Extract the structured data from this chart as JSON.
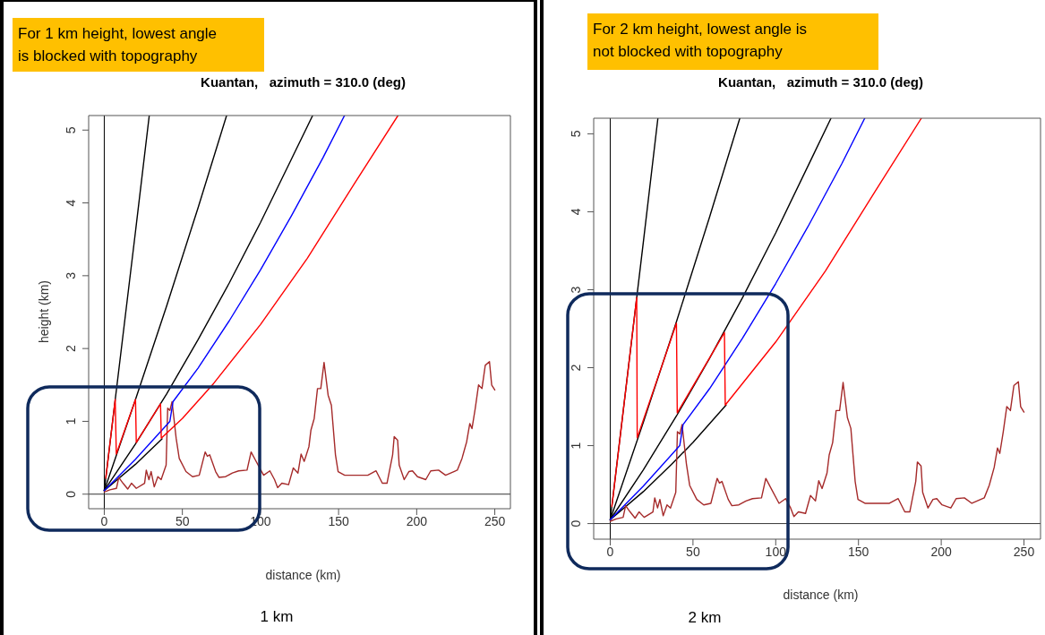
{
  "chart_data": [
    {
      "type": "line",
      "title": "Kuantan,   azimuth = 310.0 (deg)",
      "xlabel": "distance (km)",
      "ylabel": "height (km)",
      "annotations": [
        "For 1 km height, lowest angle\nis blocked with topography",
        "1 km"
      ],
      "xlim": [
        -10,
        260
      ],
      "ylim": [
        -0.2,
        5.2
      ],
      "xticks": [
        0,
        50,
        100,
        150,
        200,
        250
      ],
      "yticks": [
        0,
        1,
        2,
        3,
        4,
        5
      ],
      "ref_lines": [
        {
          "axis": "x",
          "value": 0,
          "color": "#000000"
        },
        {
          "axis": "y",
          "value": 0,
          "color": "#333333"
        }
      ],
      "series": [
        {
          "color": "#000000",
          "x": [
            0,
            10,
            20,
            28.8
          ],
          "values": [
            0.05,
            1.83,
            3.61,
            5.2
          ]
        },
        {
          "color": "#000000",
          "x": [
            0,
            20,
            40,
            60,
            78.3
          ],
          "values": [
            0.05,
            1.3,
            2.59,
            3.93,
            5.2
          ]
        },
        {
          "color": "#000000",
          "x": [
            0,
            20,
            40,
            60,
            80,
            100,
            120,
            133.4
          ],
          "values": [
            0.05,
            0.69,
            1.38,
            2.12,
            2.9,
            3.73,
            4.61,
            5.2
          ]
        },
        {
          "color": "#000000",
          "x": [
            0,
            20,
            37
          ],
          "values": [
            0.05,
            0.41,
            0.76
          ]
        },
        {
          "color": "#a52a2a",
          "x": [
            0,
            3.6,
            7.8,
            9.3,
            12,
            15,
            17.4,
            20.5,
            25.8,
            26.9,
            28.6,
            30,
            32,
            34.3,
            36.4,
            39.6,
            40.6,
            42,
            43.4,
            46,
            48,
            52.3,
            56.5,
            60.8,
            64.6,
            66,
            67.5,
            71.3,
            73.5,
            77.7,
            82,
            86,
            91.4,
            94,
            96.7,
            102,
            106,
            109,
            111,
            113.7,
            118,
            121,
            124,
            126,
            128,
            131,
            132.3,
            134.4,
            136.5,
            138.6,
            140.7,
            143.3,
            145.4,
            148,
            149.7,
            153.9,
            162,
            168.7,
            174,
            178,
            181,
            184.6,
            185.6,
            187.8,
            188.8,
            192,
            195,
            197.3,
            200.5,
            205.8,
            209,
            214,
            218.5,
            226,
            229,
            232,
            234,
            235.4,
            237.5,
            239.6,
            241.8,
            243.9,
            246.6,
            248,
            250
          ],
          "values": [
            0.03,
            0.06,
            0.08,
            0.23,
            0.15,
            0.07,
            0.15,
            0.08,
            0.15,
            0.33,
            0.2,
            0.31,
            0.1,
            0.24,
            0.2,
            0.4,
            1.18,
            1.15,
            1.27,
            0.77,
            0.49,
            0.31,
            0.24,
            0.26,
            0.58,
            0.52,
            0.54,
            0.31,
            0.23,
            0.24,
            0.29,
            0.32,
            0.33,
            0.58,
            0.47,
            0.26,
            0.32,
            0.2,
            0.09,
            0.15,
            0.13,
            0.36,
            0.29,
            0.55,
            0.45,
            0.65,
            0.88,
            1.04,
            1.45,
            1.45,
            1.81,
            1.36,
            1.22,
            0.54,
            0.31,
            0.26,
            0.26,
            0.26,
            0.32,
            0.15,
            0.15,
            0.54,
            0.79,
            0.74,
            0.4,
            0.2,
            0.31,
            0.32,
            0.24,
            0.2,
            0.32,
            0.33,
            0.26,
            0.33,
            0.49,
            0.72,
            0.97,
            0.9,
            1.18,
            1.5,
            1.45,
            1.77,
            1.82,
            1.5,
            1.43
          ]
        },
        {
          "color": "#0000ff",
          "x": [
            0,
            20,
            42,
            44,
            60,
            80,
            100,
            120,
            140,
            153.8
          ],
          "values": [
            0.05,
            0.48,
            1.0,
            1.27,
            1.73,
            2.38,
            3.08,
            3.83,
            4.62,
            5.2
          ]
        },
        {
          "color": "#ff0000",
          "x": [
            1,
            7,
            7.7,
            20,
            20.5,
            36,
            36.5,
            50,
            70,
            100,
            130,
            160,
            188
          ],
          "values": [
            0.22,
            1.3,
            0.55,
            1.3,
            0.71,
            1.24,
            0.77,
            1.04,
            1.52,
            2.33,
            3.24,
            4.26,
            5.2
          ]
        }
      ]
    },
    {
      "type": "line",
      "title": "Kuantan,   azimuth = 310.0 (deg)",
      "xlabel": "distance (km)",
      "annotations": [
        "For 2 km height, lowest angle is\nnot blocked with topography",
        "2 km"
      ],
      "xlim": [
        -10,
        260
      ],
      "ylim": [
        -0.2,
        5.2
      ],
      "xticks": [
        0,
        50,
        100,
        150,
        200,
        250
      ],
      "yticks": [
        0,
        1,
        2,
        3,
        4,
        5
      ],
      "ref_lines": [
        {
          "axis": "x",
          "value": 0,
          "color": "#000000"
        },
        {
          "axis": "y",
          "value": 0,
          "color": "#333333"
        }
      ],
      "series": [
        {
          "color": "#000000",
          "x": [
            0,
            10,
            20,
            28.8
          ],
          "values": [
            0.05,
            1.83,
            3.61,
            5.2
          ]
        },
        {
          "color": "#000000",
          "x": [
            0,
            20,
            40,
            60,
            78.3
          ],
          "values": [
            0.05,
            1.3,
            2.59,
            3.93,
            5.2
          ]
        },
        {
          "color": "#000000",
          "x": [
            0,
            20,
            40,
            60,
            80,
            100,
            120,
            133.4
          ],
          "values": [
            0.05,
            0.69,
            1.38,
            2.12,
            2.9,
            3.73,
            4.61,
            5.2
          ]
        },
        {
          "color": "#000000",
          "x": [
            0,
            20,
            37,
            50,
            70
          ],
          "values": [
            0.05,
            0.41,
            0.76,
            1.04,
            1.52
          ]
        },
        {
          "color": "#a52a2a",
          "x": [
            0,
            3.6,
            7.8,
            9.3,
            12,
            15,
            17.4,
            20.5,
            25.8,
            26.9,
            28.6,
            30,
            32,
            34.3,
            36.4,
            39.6,
            40.6,
            42,
            43.4,
            46,
            48,
            52.3,
            56.5,
            60.8,
            64.6,
            66,
            67.5,
            71.3,
            73.5,
            77.7,
            82,
            86,
            91.4,
            94,
            96.7,
            102,
            106,
            109,
            111,
            113.7,
            118,
            121,
            124,
            126,
            128,
            131,
            132.3,
            134.4,
            136.5,
            138.6,
            140.7,
            143.3,
            145.4,
            148,
            149.7,
            153.9,
            162,
            168.7,
            174,
            178,
            181,
            184.6,
            185.6,
            187.8,
            188.8,
            192,
            195,
            197.3,
            200.5,
            205.8,
            209,
            214,
            218.5,
            226,
            229,
            232,
            234,
            235.4,
            237.5,
            239.6,
            241.8,
            243.9,
            246.6,
            248,
            250
          ],
          "values": [
            0.03,
            0.06,
            0.08,
            0.23,
            0.15,
            0.07,
            0.15,
            0.08,
            0.15,
            0.33,
            0.2,
            0.31,
            0.1,
            0.24,
            0.2,
            0.4,
            1.18,
            1.15,
            1.27,
            0.77,
            0.49,
            0.31,
            0.24,
            0.26,
            0.58,
            0.52,
            0.54,
            0.31,
            0.23,
            0.24,
            0.29,
            0.32,
            0.33,
            0.58,
            0.47,
            0.26,
            0.32,
            0.2,
            0.09,
            0.15,
            0.13,
            0.36,
            0.29,
            0.55,
            0.45,
            0.65,
            0.88,
            1.04,
            1.45,
            1.45,
            1.81,
            1.36,
            1.22,
            0.54,
            0.31,
            0.26,
            0.26,
            0.26,
            0.32,
            0.15,
            0.15,
            0.54,
            0.79,
            0.74,
            0.4,
            0.2,
            0.31,
            0.32,
            0.24,
            0.2,
            0.32,
            0.33,
            0.26,
            0.33,
            0.49,
            0.72,
            0.97,
            0.9,
            1.18,
            1.5,
            1.45,
            1.77,
            1.82,
            1.5,
            1.43
          ]
        },
        {
          "color": "#0000ff",
          "x": [
            0,
            20,
            42,
            44,
            60,
            80,
            100,
            120,
            140,
            153.8
          ],
          "values": [
            0.05,
            0.48,
            1.0,
            1.27,
            1.73,
            2.38,
            3.08,
            3.83,
            4.62,
            5.2
          ]
        },
        {
          "color": "#ff0000",
          "x": [
            1,
            16,
            16.3,
            40,
            40.5,
            69,
            69.5,
            100,
            130,
            160,
            188
          ],
          "values": [
            0.22,
            2.9,
            1.1,
            2.57,
            1.42,
            2.45,
            1.52,
            2.33,
            3.24,
            4.26,
            5.2
          ]
        }
      ]
    }
  ]
}
